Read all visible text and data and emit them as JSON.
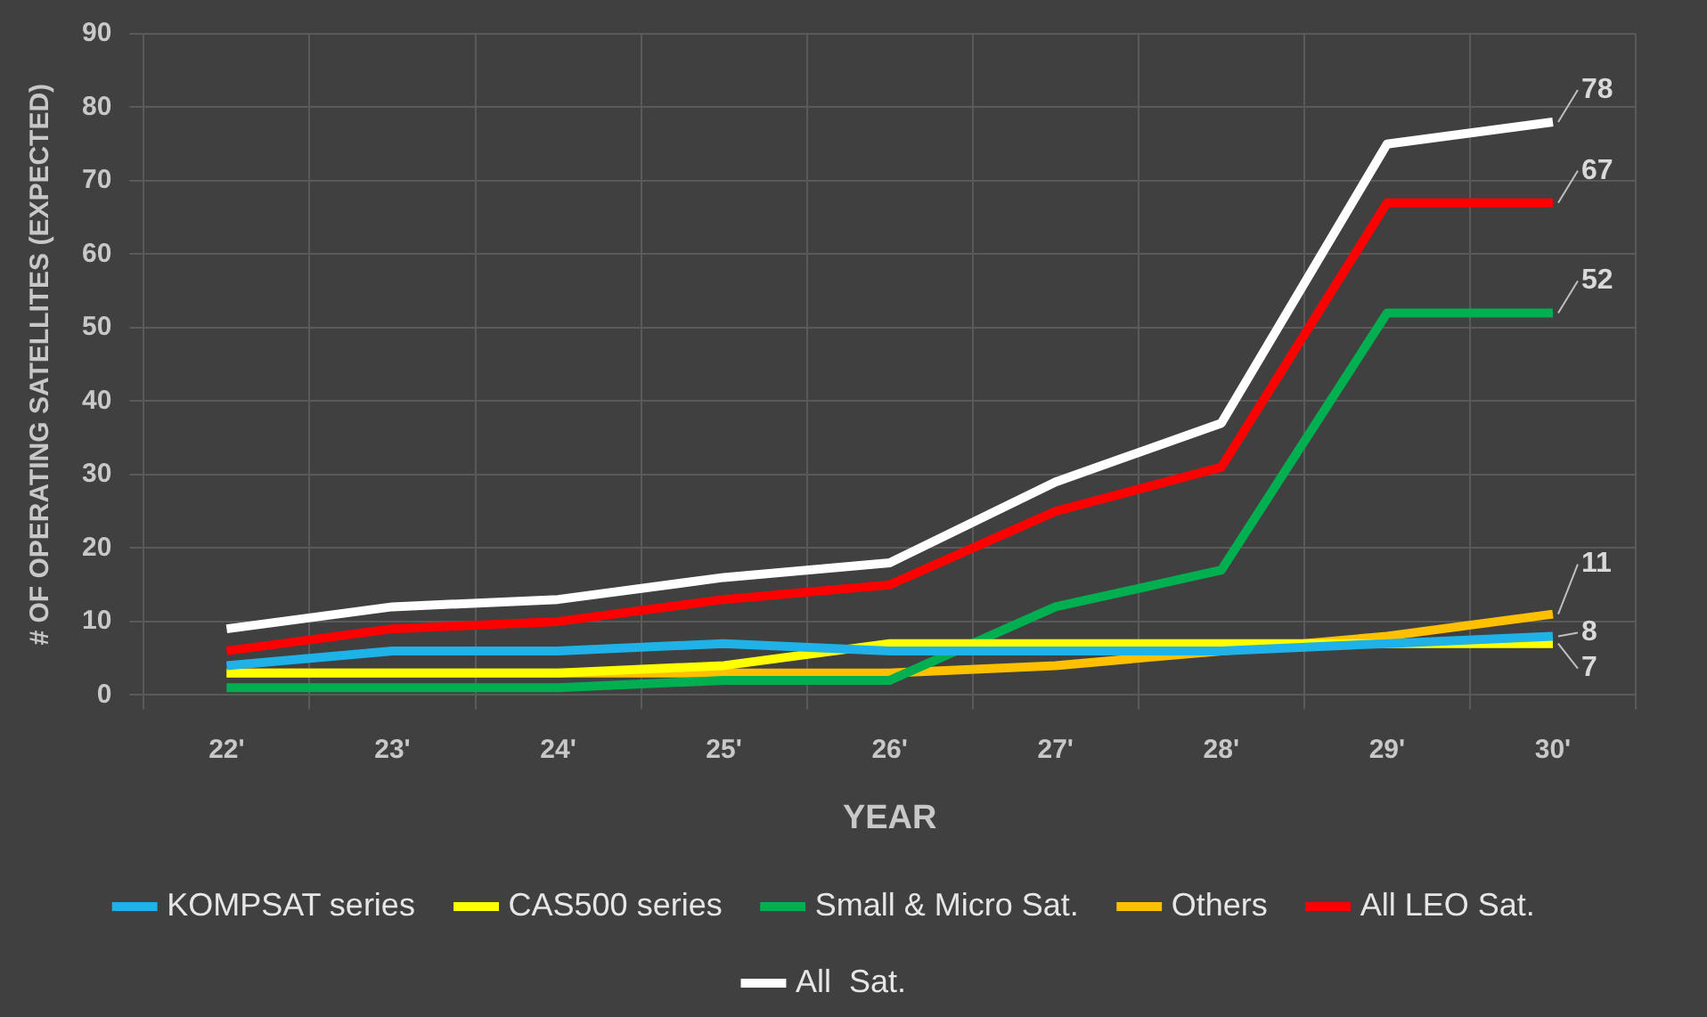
{
  "chart_data": {
    "type": "line",
    "xlabel": "YEAR",
    "ylabel": "# OF OPERATING SATELLITES (EXPECTED)",
    "categories": [
      "22'",
      "23'",
      "24'",
      "25'",
      "26'",
      "27'",
      "28'",
      "29'",
      "30'"
    ],
    "ylim": [
      0,
      90
    ],
    "yticks": [
      0,
      10,
      20,
      30,
      40,
      50,
      60,
      70,
      80,
      90
    ],
    "grid": true,
    "legend": "bottom",
    "marker": "none",
    "line_style": "solid",
    "series": [
      {
        "name": "KOMPSAT series",
        "color": "#1fb2e8",
        "values": [
          4,
          6,
          6,
          7,
          6,
          6,
          6,
          7,
          8
        ],
        "value_labels": [
          null,
          null,
          null,
          null,
          null,
          null,
          null,
          null,
          "8"
        ]
      },
      {
        "name": "CAS500 series",
        "color": "#ffff00",
        "values": [
          3,
          3,
          3,
          4,
          7,
          7,
          7,
          7,
          7
        ],
        "value_labels": [
          null,
          null,
          null,
          null,
          null,
          null,
          null,
          null,
          "7"
        ]
      },
      {
        "name": "Small & Micro Sat.",
        "color": "#00b050",
        "values": [
          1,
          1,
          1,
          2,
          2,
          12,
          17,
          52,
          52
        ],
        "value_labels": [
          null,
          null,
          null,
          null,
          null,
          null,
          null,
          null,
          "52"
        ]
      },
      {
        "name": "Others",
        "color": "#ffc000",
        "values": [
          3,
          3,
          3,
          3,
          3,
          4,
          6,
          8,
          11
        ],
        "value_labels": [
          null,
          null,
          null,
          null,
          null,
          null,
          null,
          null,
          "11"
        ]
      },
      {
        "name": "All LEO Sat.",
        "color": "#ff0000",
        "values": [
          6,
          9,
          10,
          13,
          15,
          25,
          31,
          67,
          67
        ],
        "value_labels": [
          null,
          null,
          null,
          null,
          null,
          null,
          null,
          null,
          "67"
        ]
      },
      {
        "name": "All  Sat.",
        "color": "#ffffff",
        "values": [
          9,
          12,
          13,
          16,
          18,
          29,
          37,
          75,
          78
        ],
        "value_labels": [
          null,
          null,
          null,
          null,
          null,
          null,
          null,
          null,
          "78"
        ]
      }
    ]
  }
}
